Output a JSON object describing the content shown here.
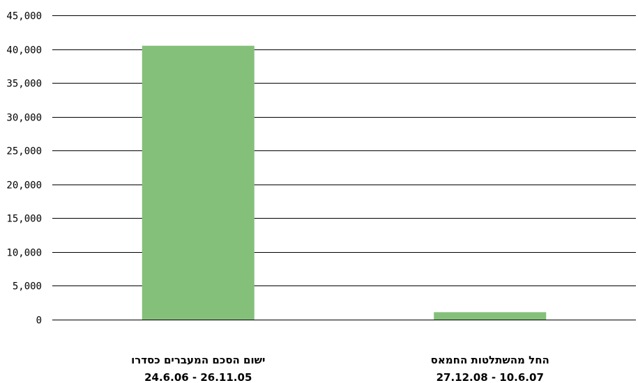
{
  "chart_data": {
    "type": "bar",
    "categories": [
      {
        "line1": "ישום  הסכם המעברים כסדרו",
        "line2": "24.6.06 - 26.11.05"
      },
      {
        "line1": "החל מהשתלטות החמאס",
        "line2": "27.12.08 - 10.6.07"
      }
    ],
    "values": [
      40500,
      1100
    ],
    "ylim": [
      0,
      45000
    ],
    "yticks": [
      "0",
      "5,000",
      "10,000",
      "15,000",
      "20,000",
      "25,000",
      "30,000",
      "35,000",
      "40,000",
      "45,000"
    ],
    "grid": true,
    "title": "",
    "xlabel": "",
    "ylabel": "",
    "bar_color": "#84c07a"
  }
}
